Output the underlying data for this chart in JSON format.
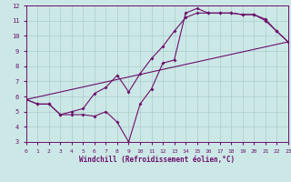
{
  "xlabel": "Windchill (Refroidissement éolien,°C)",
  "bg_color": "#cce8e6",
  "line_color": "#6b0f6b",
  "grid_color": "#aaccca",
  "axis_color": "#6b0f6b",
  "xlim": [
    0,
    23
  ],
  "ylim": [
    3,
    12
  ],
  "xticks": [
    0,
    1,
    2,
    3,
    4,
    5,
    6,
    7,
    8,
    9,
    10,
    11,
    12,
    13,
    14,
    15,
    16,
    17,
    18,
    19,
    20,
    21,
    22,
    23
  ],
  "yticks": [
    3,
    4,
    5,
    6,
    7,
    8,
    9,
    10,
    11,
    12
  ],
  "line1_x": [
    0,
    1,
    2,
    3,
    4,
    5,
    6,
    7,
    8,
    9,
    10,
    11,
    12,
    13,
    14,
    15,
    16,
    17,
    18,
    19,
    20,
    21,
    22,
    23
  ],
  "line1_y": [
    5.8,
    5.5,
    5.5,
    4.8,
    4.8,
    4.8,
    4.7,
    5.0,
    4.3,
    3.0,
    5.5,
    6.5,
    8.2,
    8.4,
    11.5,
    11.8,
    11.5,
    11.5,
    11.5,
    11.4,
    11.4,
    11.1,
    10.3,
    9.6
  ],
  "line2_x": [
    0,
    1,
    2,
    3,
    4,
    5,
    6,
    7,
    8,
    9,
    10,
    11,
    12,
    13,
    14,
    15,
    16,
    17,
    18,
    19,
    20,
    21,
    22,
    23
  ],
  "line2_y": [
    5.8,
    5.5,
    5.5,
    4.8,
    5.0,
    5.2,
    6.2,
    6.6,
    7.4,
    6.3,
    7.5,
    8.5,
    9.3,
    10.3,
    11.2,
    11.5,
    11.5,
    11.5,
    11.5,
    11.4,
    11.4,
    11.0,
    10.3,
    9.6
  ],
  "line3_x": [
    0,
    23
  ],
  "line3_y": [
    5.8,
    9.6
  ]
}
